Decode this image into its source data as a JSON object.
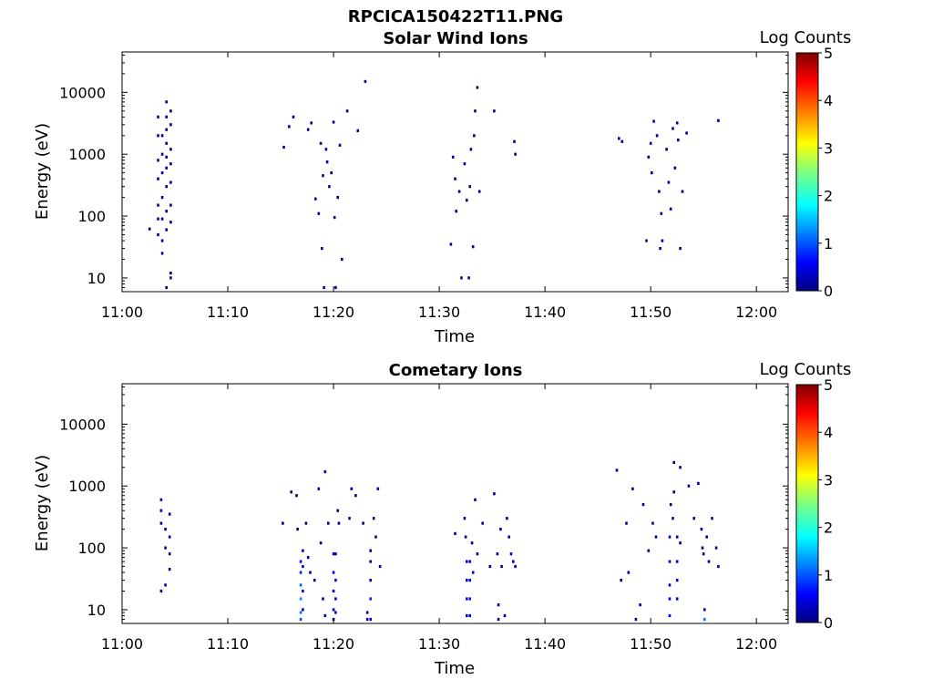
{
  "figure_title": "RPCICA150422T11.PNG",
  "chart_data": [
    {
      "type": "heatmap",
      "title": "Solar Wind Ions",
      "xlabel": "Time",
      "ylabel": "Energy (eV)",
      "x_ticks": [
        "11:00",
        "11:10",
        "11:20",
        "11:30",
        "11:40",
        "11:50",
        "12:00"
      ],
      "xlim_minutes": [
        0,
        63
      ],
      "y_scale": "log",
      "y_ticks": [
        "10",
        "100",
        "1000",
        "10000"
      ],
      "ylim": [
        6,
        45000
      ],
      "colorbar": {
        "label": "Log Counts",
        "ticks": [
          "0",
          "1",
          "2",
          "3",
          "4",
          "5"
        ],
        "range": [
          0,
          5
        ],
        "colormap": "jet"
      },
      "cells": [
        [
          2.6,
          62,
          0.1
        ],
        [
          3.4,
          4000,
          0.1
        ],
        [
          3.4,
          2000,
          0.1
        ],
        [
          3.4,
          800,
          0.1
        ],
        [
          3.4,
          400,
          0.1
        ],
        [
          3.4,
          150,
          0.1
        ],
        [
          3.4,
          90,
          0.1
        ],
        [
          3.4,
          50,
          0.1
        ],
        [
          3.8,
          2000,
          0.1
        ],
        [
          3.8,
          1000,
          0.1
        ],
        [
          3.8,
          500,
          0.1
        ],
        [
          3.8,
          200,
          0.1
        ],
        [
          3.8,
          90,
          0.1
        ],
        [
          3.8,
          40,
          0.1
        ],
        [
          3.8,
          25,
          0.1
        ],
        [
          4.2,
          7000,
          0.1
        ],
        [
          4.2,
          4000,
          0.1
        ],
        [
          4.2,
          2500,
          0.1
        ],
        [
          4.2,
          1500,
          0.1
        ],
        [
          4.2,
          900,
          0.1
        ],
        [
          4.2,
          600,
          0.1
        ],
        [
          4.2,
          300,
          0.1
        ],
        [
          4.2,
          120,
          0.1
        ],
        [
          4.2,
          60,
          0.1
        ],
        [
          4.2,
          7,
          0.1
        ],
        [
          4.6,
          5000,
          0.1
        ],
        [
          4.6,
          3000,
          0.1
        ],
        [
          4.6,
          1200,
          0.1
        ],
        [
          4.6,
          700,
          0.1
        ],
        [
          4.6,
          350,
          0.1
        ],
        [
          4.6,
          150,
          0.1
        ],
        [
          4.6,
          80,
          0.1
        ],
        [
          4.6,
          10,
          0.1
        ],
        [
          4.6,
          12,
          0.1
        ],
        [
          15.3,
          1300,
          0.1
        ],
        [
          15.8,
          2800,
          0.1
        ],
        [
          16.2,
          4000,
          0.1
        ],
        [
          17.6,
          2500,
          0.1
        ],
        [
          17.9,
          3200,
          0.1
        ],
        [
          18.3,
          190,
          0.1
        ],
        [
          18.6,
          110,
          0.1
        ],
        [
          18.8,
          1500,
          0.1
        ],
        [
          18.9,
          30,
          0.1
        ],
        [
          19.0,
          450,
          0.1
        ],
        [
          19.1,
          7,
          0.1
        ],
        [
          19.3,
          1200,
          0.1
        ],
        [
          19.4,
          750,
          0.1
        ],
        [
          19.6,
          300,
          0.1
        ],
        [
          19.8,
          500,
          0.1
        ],
        [
          20.0,
          3300,
          0.1
        ],
        [
          20.1,
          95,
          0.1
        ],
        [
          20.2,
          7,
          0.1
        ],
        [
          20.4,
          200,
          0.1
        ],
        [
          20.6,
          1400,
          0.1
        ],
        [
          20.8,
          20,
          0.1
        ],
        [
          21.3,
          5000,
          0.1
        ],
        [
          22.3,
          2400,
          0.1
        ],
        [
          23.0,
          15000,
          0.1
        ],
        [
          31.1,
          35,
          0.1
        ],
        [
          31.3,
          900,
          0.1
        ],
        [
          31.5,
          400,
          0.1
        ],
        [
          31.6,
          120,
          0.1
        ],
        [
          31.9,
          250,
          0.1
        ],
        [
          32.1,
          10,
          0.1
        ],
        [
          32.4,
          700,
          0.1
        ],
        [
          32.6,
          180,
          0.1
        ],
        [
          32.8,
          10,
          0.1
        ],
        [
          32.9,
          300,
          0.1
        ],
        [
          33.0,
          1200,
          0.1
        ],
        [
          33.2,
          32,
          0.1
        ],
        [
          33.3,
          2000,
          0.1
        ],
        [
          33.4,
          5000,
          0.1
        ],
        [
          33.6,
          12000,
          0.1
        ],
        [
          33.8,
          250,
          0.1
        ],
        [
          35.2,
          5000,
          0.1
        ],
        [
          37.1,
          1600,
          0.1
        ],
        [
          37.2,
          1000,
          0.1
        ],
        [
          47.0,
          1800,
          0.1
        ],
        [
          47.3,
          1600,
          0.1
        ],
        [
          49.6,
          40,
          0.1
        ],
        [
          49.8,
          900,
          0.1
        ],
        [
          50.0,
          1500,
          0.1
        ],
        [
          50.1,
          500,
          0.1
        ],
        [
          50.3,
          3400,
          0.1
        ],
        [
          50.6,
          2000,
          0.1
        ],
        [
          50.8,
          250,
          0.1
        ],
        [
          50.9,
          30,
          0.1
        ],
        [
          51.0,
          110,
          0.1
        ],
        [
          51.1,
          40,
          0.1
        ],
        [
          51.5,
          1200,
          0.1
        ],
        [
          51.7,
          350,
          0.1
        ],
        [
          51.9,
          130,
          0.1
        ],
        [
          52.1,
          2600,
          0.1
        ],
        [
          52.3,
          600,
          0.1
        ],
        [
          52.5,
          3200,
          0.1
        ],
        [
          52.6,
          1700,
          0.1
        ],
        [
          52.8,
          30,
          0.1
        ],
        [
          53.0,
          250,
          0.1
        ],
        [
          53.4,
          2200,
          0.1
        ],
        [
          56.4,
          3500,
          0.1
        ]
      ]
    },
    {
      "type": "heatmap",
      "title": "Cometary Ions",
      "xlabel": "Time",
      "ylabel": "Energy (eV)",
      "x_ticks": [
        "11:00",
        "11:10",
        "11:20",
        "11:30",
        "11:40",
        "11:50",
        "12:00"
      ],
      "xlim_minutes": [
        0,
        63
      ],
      "y_scale": "log",
      "y_ticks": [
        "10",
        "100",
        "1000",
        "10000"
      ],
      "ylim": [
        6,
        45000
      ],
      "colorbar": {
        "label": "Log Counts",
        "ticks": [
          "0",
          "1",
          "2",
          "3",
          "4",
          "5"
        ],
        "range": [
          0,
          5
        ],
        "colormap": "jet"
      },
      "cells": [
        [
          3.7,
          600,
          0.1
        ],
        [
          3.7,
          400,
          0.1
        ],
        [
          3.7,
          250,
          0.1
        ],
        [
          3.7,
          20,
          0.1
        ],
        [
          4.1,
          200,
          0.1
        ],
        [
          4.1,
          100,
          0.1
        ],
        [
          4.1,
          25,
          0.1
        ],
        [
          4.5,
          350,
          0.1
        ],
        [
          4.5,
          150,
          0.1
        ],
        [
          4.5,
          80,
          0.1
        ],
        [
          4.5,
          45,
          0.1
        ],
        [
          15.2,
          250,
          0.1
        ],
        [
          16.0,
          800,
          0.1
        ],
        [
          16.5,
          700,
          0.1
        ],
        [
          16.6,
          200,
          0.1
        ],
        [
          16.9,
          60,
          0.6
        ],
        [
          16.9,
          40,
          0.8
        ],
        [
          16.9,
          25,
          1.1
        ],
        [
          16.9,
          15,
          1.3
        ],
        [
          16.9,
          9,
          1.2
        ],
        [
          16.9,
          7,
          1.0
        ],
        [
          17.1,
          90,
          0.3
        ],
        [
          17.1,
          50,
          0.5
        ],
        [
          17.1,
          20,
          0.6
        ],
        [
          17.1,
          10,
          0.4
        ],
        [
          17.4,
          250,
          0.1
        ],
        [
          17.6,
          70,
          0.2
        ],
        [
          17.8,
          40,
          0.1
        ],
        [
          18.2,
          30,
          0.1
        ],
        [
          18.6,
          900,
          0.1
        ],
        [
          18.8,
          120,
          0.1
        ],
        [
          19.0,
          15,
          0.1
        ],
        [
          19.2,
          8,
          0.1
        ],
        [
          19.2,
          1700,
          0.1
        ],
        [
          19.5,
          250,
          0.1
        ],
        [
          20.0,
          80,
          0.3
        ],
        [
          20.0,
          40,
          0.4
        ],
        [
          20.0,
          20,
          0.3
        ],
        [
          20.0,
          10,
          0.3
        ],
        [
          20.0,
          7,
          0.2
        ],
        [
          20.2,
          80,
          0.3
        ],
        [
          20.2,
          30,
          0.6
        ],
        [
          20.2,
          15,
          0.5
        ],
        [
          20.2,
          9,
          0.4
        ],
        [
          20.4,
          400,
          0.1
        ],
        [
          20.5,
          250,
          0.1
        ],
        [
          21.5,
          300,
          0.1
        ],
        [
          21.7,
          900,
          0.1
        ],
        [
          22.1,
          700,
          0.1
        ],
        [
          22.8,
          250,
          0.1
        ],
        [
          23.2,
          9,
          0.2
        ],
        [
          23.2,
          7,
          0.2
        ],
        [
          23.5,
          90,
          0.2
        ],
        [
          23.5,
          60,
          0.3
        ],
        [
          23.5,
          30,
          0.4
        ],
        [
          23.5,
          15,
          0.8
        ],
        [
          23.5,
          7,
          0.6
        ],
        [
          23.8,
          300,
          0.1
        ],
        [
          24.0,
          150,
          0.1
        ],
        [
          24.2,
          900,
          0.1
        ],
        [
          24.4,
          50,
          0.1
        ],
        [
          31.5,
          170,
          0.1
        ],
        [
          32.4,
          300,
          0.1
        ],
        [
          32.5,
          150,
          0.1
        ],
        [
          32.6,
          60,
          0.4
        ],
        [
          32.6,
          30,
          0.6
        ],
        [
          32.6,
          15,
          0.7
        ],
        [
          32.6,
          8,
          0.5
        ],
        [
          32.9,
          60,
          0.4
        ],
        [
          32.9,
          30,
          0.6
        ],
        [
          32.9,
          15,
          0.7
        ],
        [
          32.9,
          8,
          0.5
        ],
        [
          33.1,
          120,
          0.2
        ],
        [
          33.2,
          40,
          0.3
        ],
        [
          33.4,
          600,
          0.1
        ],
        [
          33.6,
          80,
          0.2
        ],
        [
          34.1,
          250,
          0.1
        ],
        [
          34.8,
          50,
          0.1
        ],
        [
          35.2,
          750,
          0.1
        ],
        [
          35.5,
          80,
          0.2
        ],
        [
          35.6,
          12,
          0.2
        ],
        [
          35.6,
          7,
          0.2
        ],
        [
          35.8,
          200,
          0.1
        ],
        [
          35.9,
          50,
          0.2
        ],
        [
          36.2,
          8,
          0.1
        ],
        [
          36.4,
          300,
          0.1
        ],
        [
          36.6,
          150,
          0.1
        ],
        [
          36.8,
          80,
          0.2
        ],
        [
          37.0,
          60,
          0.2
        ],
        [
          37.2,
          50,
          0.2
        ],
        [
          46.8,
          1800,
          0.1
        ],
        [
          47.2,
          30,
          0.1
        ],
        [
          47.7,
          250,
          0.1
        ],
        [
          47.9,
          40,
          0.1
        ],
        [
          48.3,
          900,
          0.1
        ],
        [
          48.6,
          7,
          0.2
        ],
        [
          49.0,
          12,
          0.1
        ],
        [
          49.3,
          500,
          0.1
        ],
        [
          49.8,
          90,
          0.1
        ],
        [
          50.2,
          250,
          0.1
        ],
        [
          50.5,
          150,
          0.1
        ],
        [
          51.8,
          150,
          0.3
        ],
        [
          51.8,
          60,
          0.3
        ],
        [
          51.8,
          25,
          0.2
        ],
        [
          51.8,
          15,
          0.4
        ],
        [
          51.8,
          8,
          0.5
        ],
        [
          51.9,
          500,
          0.1
        ],
        [
          52.1,
          300,
          0.1
        ],
        [
          52.2,
          800,
          0.1
        ],
        [
          52.2,
          2400,
          0.1
        ],
        [
          52.5,
          150,
          0.3
        ],
        [
          52.5,
          60,
          0.3
        ],
        [
          52.5,
          30,
          0.4
        ],
        [
          52.5,
          15,
          0.4
        ],
        [
          52.8,
          120,
          0.2
        ],
        [
          52.8,
          2000,
          0.1
        ],
        [
          53.6,
          1000,
          0.1
        ],
        [
          54.1,
          300,
          0.1
        ],
        [
          54.5,
          1100,
          0.1
        ],
        [
          54.8,
          200,
          0.1
        ],
        [
          54.9,
          100,
          0.1
        ],
        [
          55.0,
          80,
          0.1
        ],
        [
          55.1,
          10,
          0.4
        ],
        [
          55.1,
          7,
          1.2
        ],
        [
          55.3,
          150,
          0.1
        ],
        [
          55.5,
          60,
          0.1
        ],
        [
          55.8,
          300,
          0.1
        ],
        [
          56.2,
          100,
          0.1
        ],
        [
          56.4,
          50,
          0.1
        ]
      ]
    }
  ]
}
